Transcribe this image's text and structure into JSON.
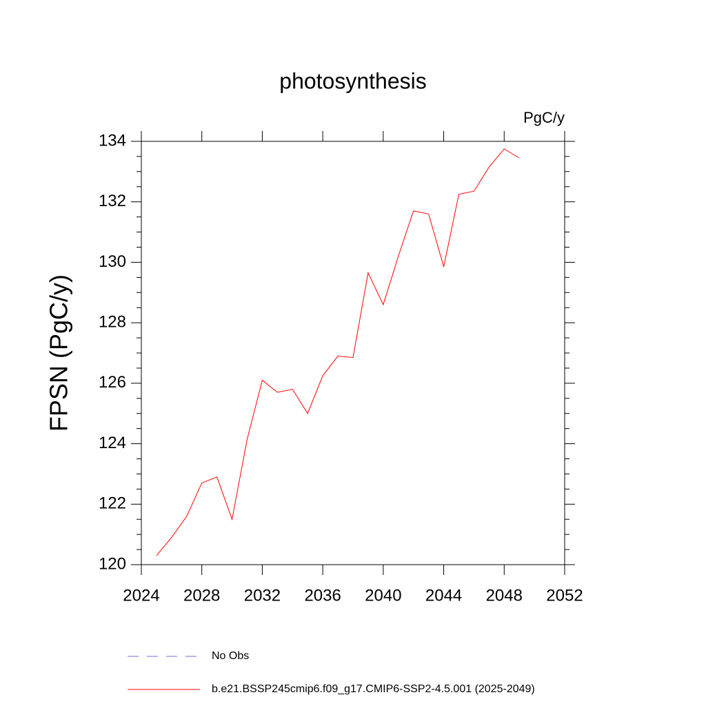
{
  "chart_data": {
    "type": "line",
    "title": "photosynthesis",
    "units": "PgC/y",
    "y_label": "FPSN  (PgC/y)",
    "x": [
      2025,
      2026,
      2027,
      2028,
      2029,
      2030,
      2031,
      2032,
      2033,
      2034,
      2035,
      2036,
      2037,
      2038,
      2039,
      2040,
      2041,
      2042,
      2043,
      2044,
      2045,
      2046,
      2047,
      2048,
      2049
    ],
    "series": [
      {
        "name": "No Obs",
        "color": "#6f6fd8",
        "dashed": true,
        "values": [
          null,
          null,
          null,
          null,
          null,
          null,
          null,
          null,
          null,
          null,
          null,
          null,
          null,
          null,
          null,
          null,
          null,
          null,
          null,
          null,
          null,
          null,
          null,
          null,
          null
        ]
      },
      {
        "name": "b.e21.BSSP245cmip6.f09_g17.CMIP6-SSP2-4.5.001 (2025-2049)",
        "color": "#ff0000",
        "dashed": false,
        "values": [
          120.3,
          120.9,
          121.6,
          122.7,
          122.9,
          121.5,
          124.15,
          126.1,
          125.7,
          125.8,
          125.0,
          126.25,
          126.9,
          126.85,
          129.65,
          128.6,
          130.2,
          131.7,
          131.6,
          129.85,
          132.25,
          132.35,
          133.15,
          133.75,
          133.45
        ]
      }
    ],
    "xlim": [
      2024,
      2052
    ],
    "xticks": [
      2024,
      2028,
      2032,
      2036,
      2040,
      2044,
      2048,
      2052
    ],
    "ylim": [
      120,
      134
    ],
    "yticks": [
      120,
      122,
      124,
      126,
      128,
      130,
      132,
      134
    ],
    "yminorticks": [
      120.5,
      121,
      121.5,
      122.5,
      123,
      123.5,
      124.5,
      125,
      125.5,
      126.5,
      127,
      127.5,
      128.5,
      129,
      129.5,
      130.5,
      131,
      131.5,
      132.5,
      133,
      133.5
    ]
  }
}
